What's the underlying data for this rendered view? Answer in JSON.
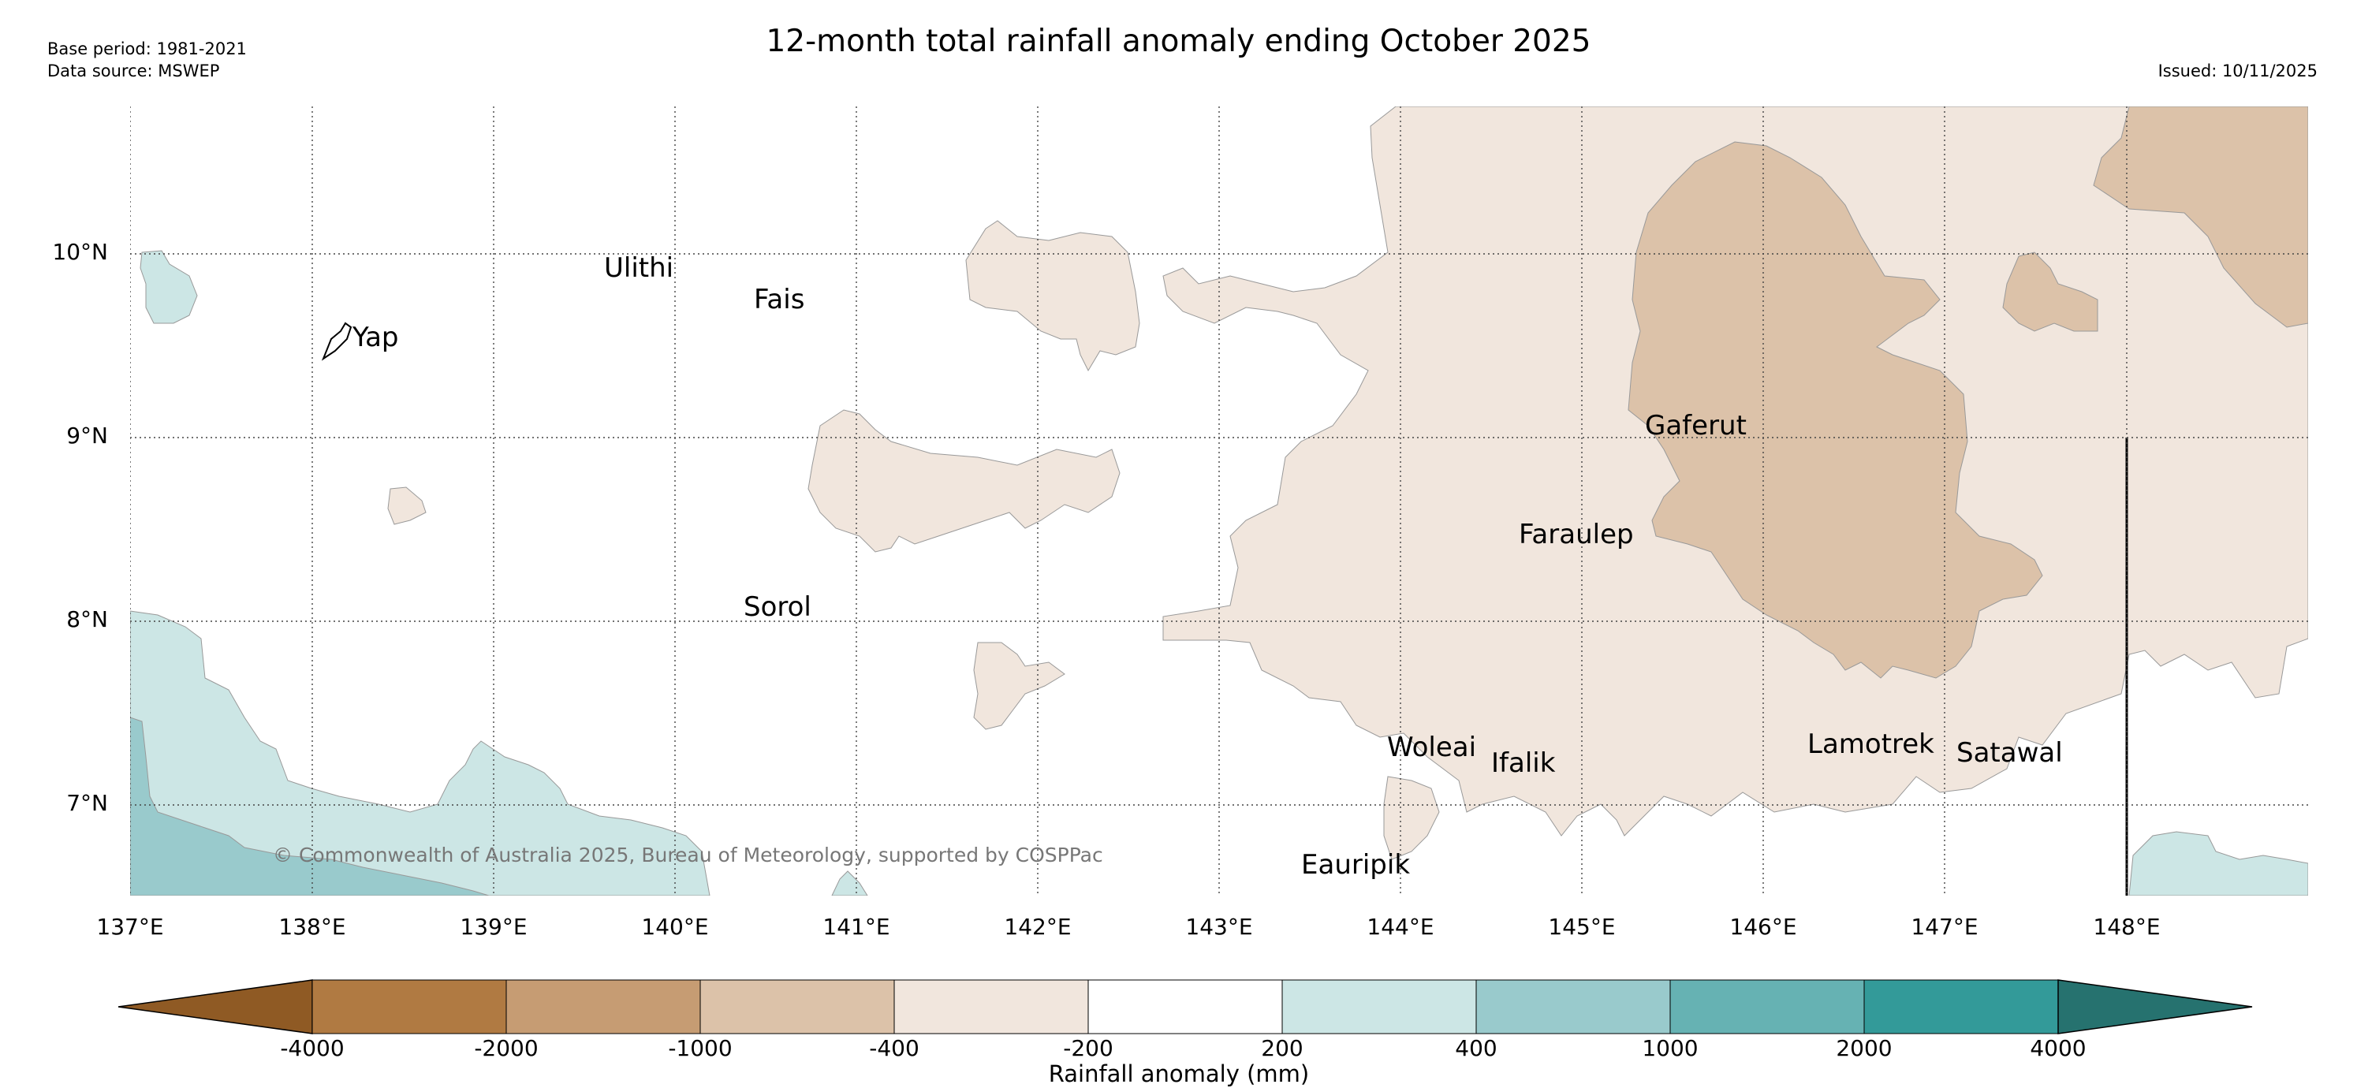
{
  "title": "12-month total rainfall anomaly ending October 2025",
  "base_period": "Base period: 1981-2021",
  "data_source": "Data source: MSWEP",
  "issued": "Issued: 10/11/2025",
  "copyright": "© Commonwealth of Australia 2025, Bureau of Meteorology, supported by COSPPac",
  "latitude_labels": [
    "10°N",
    "9°N",
    "8°N",
    "7°N"
  ],
  "longitude_labels": [
    "137°E",
    "138°E",
    "139°E",
    "140°E",
    "141°E",
    "142°E",
    "143°E",
    "144°E",
    "145°E",
    "146°E",
    "147°E",
    "148°E"
  ],
  "places": {
    "yap": "Yap",
    "ulithi": "Ulithi",
    "fais": "Fais",
    "gaferut": "Gaferut",
    "faraulep": "Faraulep",
    "sorol": "Sorol",
    "woleai": "Woleai",
    "ifalik": "Ifalik",
    "lamotrek": "Lamotrek",
    "satawal": "Satawal",
    "eauripik": "Eauripik"
  },
  "colorbar": {
    "title": "Rainfall anomaly (mm)",
    "ticks": [
      "-4000",
      "-2000",
      "-1000",
      "-400",
      "-200",
      "200",
      "400",
      "1000",
      "2000",
      "4000"
    ],
    "colors": [
      "#8f5a24",
      "#b07a42",
      "#c69c73",
      "#dcc2a9",
      "#f1e6dd",
      "#ffffff",
      "#cce6e5",
      "#99cacc",
      "#66b2b3",
      "#339a99",
      "#26726f"
    ]
  }
}
